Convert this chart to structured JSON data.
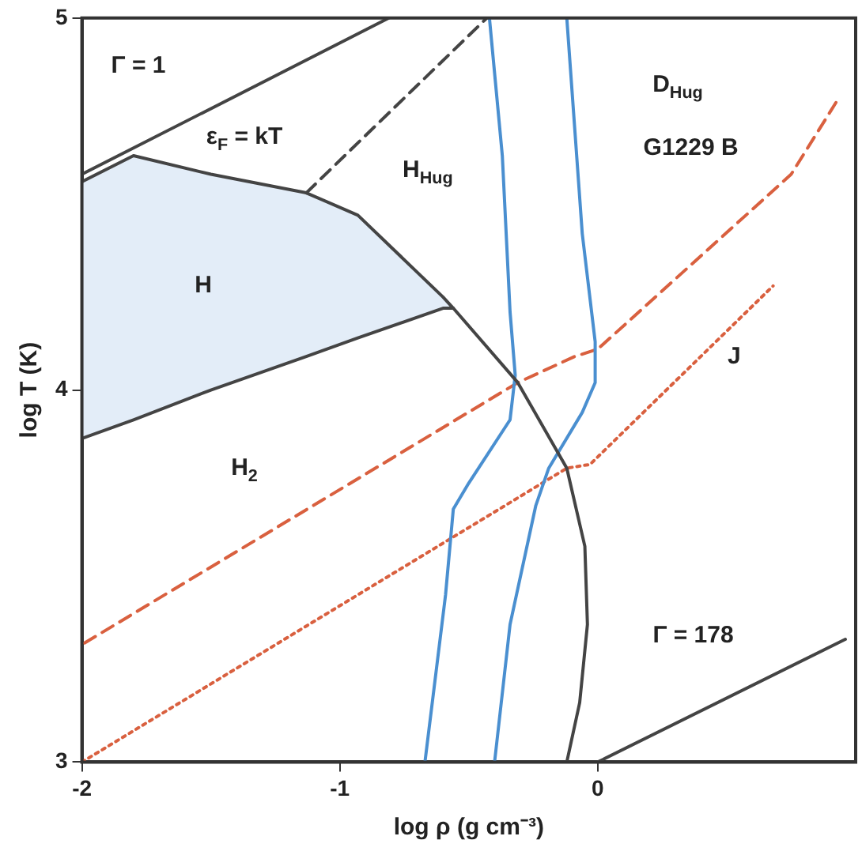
{
  "chart_data": {
    "type": "line",
    "xlabel": "log ρ (g cm⁻³)",
    "ylabel": "log T (K)",
    "xlim": [
      -2,
      1
    ],
    "ylim": [
      3,
      5
    ],
    "xticks": [
      -2,
      -1,
      0
    ],
    "yticks": [
      3,
      4,
      5
    ],
    "grid": false,
    "legend": false,
    "marker": "none",
    "series": [
      {
        "color": "#444444",
        "line_style": "solid",
        "x": [
          -2,
          -0.81
        ],
        "values": [
          4.58,
          5
        ]
      },
      {
        "color": "#444444",
        "line_style": "dashed",
        "x": [
          -1.13,
          -0.43
        ],
        "values": [
          4.53,
          5
        ]
      },
      {
        "color": "#444444",
        "line_style": "solid",
        "x": [
          -2,
          -1.8,
          -1.5,
          -1.13,
          -0.93,
          -0.6,
          -0.56
        ],
        "values": [
          3.87,
          3.92,
          4.0,
          4.09,
          4.14,
          4.22,
          4.22
        ]
      },
      {
        "type": "area",
        "color": "#e3edf8",
        "x": [
          -2,
          -1.8,
          -1.5,
          -1.13,
          -0.93,
          -0.6,
          -0.56
        ],
        "values": [
          4.56,
          4.63,
          4.58,
          4.53,
          4.47,
          4.25,
          4.22
        ]
      },
      {
        "color": "#444444",
        "line_style": "solid",
        "x": [
          -2,
          -1.8,
          -1.5,
          -1.13,
          -0.93,
          -0.6,
          -0.56,
          -0.31,
          -0.12,
          -0.05,
          -0.04,
          -0.07,
          -0.12
        ],
        "values": [
          4.56,
          4.63,
          4.58,
          4.53,
          4.47,
          4.25,
          4.22,
          4.02,
          3.79,
          3.58,
          3.37,
          3.16,
          3.0
        ]
      },
      {
        "color": "#4a8fd0",
        "line_style": "solid",
        "x": [
          -0.42,
          -0.37,
          -0.34,
          -0.32,
          -0.34,
          -0.5,
          -0.56,
          -0.59,
          -0.67
        ],
        "values": [
          5,
          4.63,
          4.21,
          4.04,
          3.92,
          3.75,
          3.68,
          3.45,
          3.0
        ]
      },
      {
        "color": "#4a8fd0",
        "line_style": "solid",
        "x": [
          -0.12,
          -0.06,
          -0.01,
          -0.01,
          -0.06,
          -0.19,
          -0.24,
          -0.34,
          -0.4
        ],
        "values": [
          5,
          4.42,
          4.13,
          4.02,
          3.94,
          3.79,
          3.69,
          3.37,
          3.0
        ]
      },
      {
        "color": "#d9603f",
        "line_style": "dashed",
        "x": [
          -1.99,
          -0.31,
          -0.09,
          0,
          0.75,
          0.93
        ],
        "values": [
          3.32,
          4.02,
          4.09,
          4.11,
          4.58,
          4.78
        ]
      },
      {
        "color": "#d9603f",
        "line_style": "dotted",
        "x": [
          -2,
          -0.12,
          -0.03,
          0.68
        ],
        "values": [
          3.0,
          3.79,
          3.8,
          4.28
        ]
      },
      {
        "color": "#444444",
        "line_style": "solid",
        "x": [
          0,
          0.96
        ],
        "values": [
          3.0,
          3.33
        ]
      }
    ],
    "annotations": [
      "Γ = 1",
      "ε$_{F}$ = kT",
      "H$_{Hug}$",
      "D$_{Hug}$",
      "G1229 B",
      "J",
      "H",
      "H$_{2}$",
      "Γ = 178"
    ]
  }
}
